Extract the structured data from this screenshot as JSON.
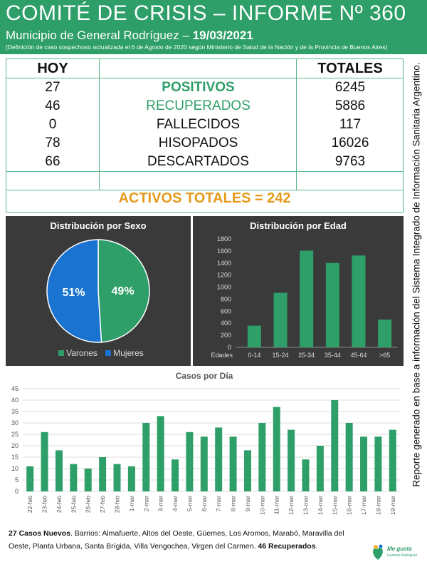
{
  "header": {
    "title": "COMITÉ DE CRISIS – INFORME Nº 360",
    "subtitle_prefix": "Municipio de General Rodríguez – ",
    "subtitle_date": "19/03/2021",
    "note": "(Definición de caso sospechoso actualizada el 6 de Agosto de 2020 según Ministerio de Salud de la Nación y de la Provincia de Buenos Aires)"
  },
  "stats": {
    "hoy_label": "HOY",
    "totales_label": "TOTALES",
    "rows": [
      {
        "hoy": "27",
        "label": "POSITIVOS",
        "total": "6245"
      },
      {
        "hoy": "46",
        "label": "RECUPERADOS",
        "total": "5886"
      },
      {
        "hoy": "0",
        "label": "FALLECIDOS",
        "total": "117"
      },
      {
        "hoy": "78",
        "label": "HISOPADOS",
        "total": "16026"
      },
      {
        "hoy": "66",
        "label": "DESCARTADOS",
        "total": "9763"
      }
    ],
    "activos": "ACTIVOS TOTALES = 242"
  },
  "sidebar_text": "Reporte generado en base a información del Sistema Integrado de Información Sanitaria Argentino.",
  "colors": {
    "green": "#2e9f68",
    "blue": "#1a73d1",
    "orange": "#e59a1b",
    "panel": "#3a3a3a"
  },
  "chart_data": [
    {
      "type": "pie",
      "title": "Distribución por Sexo",
      "series": [
        {
          "name": "Varones",
          "value": 49,
          "label": "49%"
        },
        {
          "name": "Mujeres",
          "value": 51,
          "label": "51%"
        }
      ]
    },
    {
      "type": "bar",
      "title": "Distribución por Edad",
      "xlabel": "Edades",
      "categories": [
        "0-14",
        "15-24",
        "25-34",
        "35-44",
        "45-64",
        ">65"
      ],
      "values": [
        360,
        905,
        1605,
        1400,
        1525,
        460
      ],
      "ylim": [
        0,
        1800
      ],
      "yticks": [
        0,
        200,
        400,
        600,
        800,
        1000,
        1200,
        1400,
        1600,
        1800
      ]
    },
    {
      "type": "bar",
      "title": "Casos por Día",
      "categories": [
        "22-feb",
        "23-feb",
        "24-feb",
        "25-feb",
        "26-feb",
        "27-feb",
        "28-feb",
        "1-mar",
        "2-mar",
        "3-mar",
        "4-mar",
        "5-mar",
        "6-mar",
        "7-mar",
        "8-mar",
        "9-mar",
        "10-mar",
        "11-mar",
        "12-mar",
        "13-mar",
        "14-mar",
        "15-mar",
        "16-mar",
        "17-mar",
        "18-mar",
        "19-mar"
      ],
      "values": [
        11,
        26,
        18,
        12,
        10,
        15,
        12,
        11,
        30,
        33,
        14,
        26,
        24,
        28,
        24,
        18,
        30,
        37,
        27,
        14,
        20,
        40,
        30,
        24,
        24,
        27
      ],
      "ylim": [
        0,
        45
      ],
      "yticks": [
        0,
        5,
        10,
        15,
        20,
        25,
        30,
        35,
        40,
        45
      ]
    }
  ],
  "footer": {
    "nuevos": "27 Casos Nuevos",
    "barrios": ". Barrios: Almafuerte, Altos del Oeste, Güemes, Los Aromos, Marabó, Maravilla del Oeste, Planta Urbana, Santa Brígida, Villa Vengochea, Virgen del Carmen. ",
    "recuperados": "46 Recuperados",
    "end": "."
  },
  "logo": {
    "text": "Me gusta",
    "sub": "General Rodríguez"
  }
}
